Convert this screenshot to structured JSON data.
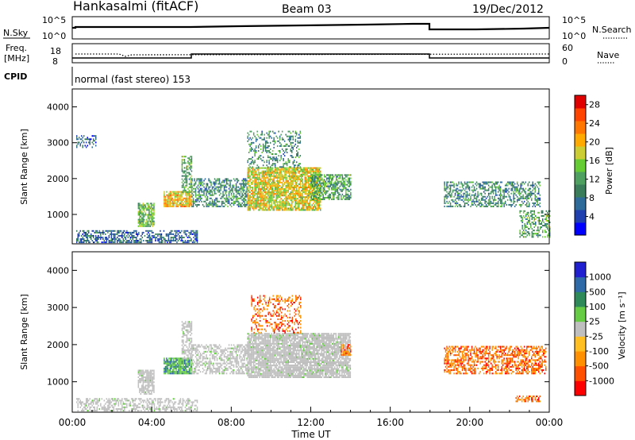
{
  "header": {
    "station": "Hankasalmi (fitACF)",
    "beam": "Beam 03",
    "date": "19/Dec/2012"
  },
  "summary_panels": {
    "nsky_label": "N.Sky",
    "nsky_ticks": [
      "10^5",
      "10^0"
    ],
    "nsearch_label": "N.Search",
    "nsearch_ticks": [
      "10^5",
      "10^0"
    ],
    "freq_label_lines": [
      "Freq.",
      "[MHz]"
    ],
    "freq_ticks": [
      "18",
      "8"
    ],
    "nave_label": "Nave",
    "nave_ticks": [
      "60",
      "0"
    ],
    "cpid_label": "CPID",
    "cpid_text": "normal (fast stereo) 153"
  },
  "colors": {
    "power_scale": [
      "#0000ff",
      "#2040b0",
      "#2e6a9a",
      "#3a7d5a",
      "#4ea060",
      "#66cc33",
      "#cccc33",
      "#ffaa00",
      "#ff7700",
      "#ff4400",
      "#e00000"
    ],
    "velocity_scale": [
      "#ff0000",
      "#ff5000",
      "#ff9000",
      "#ffbf20",
      "#bfbfbf",
      "#66cc44",
      "#2f8a5a",
      "#2f6aa8",
      "#2020d0"
    ]
  },
  "chart_data": [
    {
      "type": "heatmap",
      "name": "power",
      "xlabel": "",
      "ylabel": "Slant Range [km]",
      "xlim": [
        0,
        24
      ],
      "ylim": [
        180,
        4500
      ],
      "yticks": [
        "1000",
        "2000",
        "3000",
        "4000"
      ],
      "colorbar": {
        "label": "Power [dB]",
        "ticks": [
          "4",
          "8",
          "12",
          "16",
          "20",
          "24",
          "28"
        ],
        "range": [
          0,
          30
        ]
      },
      "echo_regions": [
        {
          "t0": 0.2,
          "t1": 6.3,
          "r0": 200,
          "r1": 520,
          "level": 7,
          "density": 0.55
        },
        {
          "t0": 3.3,
          "t1": 4.1,
          "r0": 650,
          "r1": 1300,
          "level": 14,
          "density": 0.75
        },
        {
          "t0": 4.6,
          "t1": 6.0,
          "r0": 1200,
          "r1": 1650,
          "level": 20,
          "density": 0.85
        },
        {
          "t0": 5.5,
          "t1": 6.0,
          "r0": 1600,
          "r1": 2600,
          "level": 12,
          "density": 0.6
        },
        {
          "t0": 6.0,
          "t1": 8.8,
          "r0": 1200,
          "r1": 2000,
          "level": 10,
          "density": 0.55
        },
        {
          "t0": 8.8,
          "t1": 12.5,
          "r0": 1100,
          "r1": 2300,
          "level": 18,
          "density": 0.8
        },
        {
          "t0": 12.0,
          "t1": 14.0,
          "r0": 1400,
          "r1": 2100,
          "level": 12,
          "density": 0.65
        },
        {
          "t0": 8.8,
          "t1": 11.5,
          "r0": 2300,
          "r1": 3300,
          "level": 10,
          "density": 0.3
        },
        {
          "t0": 0.2,
          "t1": 1.2,
          "r0": 2850,
          "r1": 3200,
          "level": 6,
          "density": 0.35
        },
        {
          "t0": 18.7,
          "t1": 23.5,
          "r0": 1200,
          "r1": 1900,
          "level": 10,
          "density": 0.5
        },
        {
          "t0": 22.5,
          "t1": 24.0,
          "r0": 350,
          "r1": 1100,
          "level": 12,
          "density": 0.45
        }
      ]
    },
    {
      "type": "heatmap",
      "name": "velocity",
      "xlabel": "Time UT",
      "ylabel": "Slant Range [km]",
      "xlim": [
        0,
        24
      ],
      "ylim": [
        180,
        4500
      ],
      "xticks": [
        "00:00",
        "04:00",
        "08:00",
        "12:00",
        "16:00",
        "20:00",
        "00:00"
      ],
      "yticks": [
        "1000",
        "2000",
        "3000",
        "4000"
      ],
      "colorbar": {
        "label": "Velocity [m s⁻¹]",
        "ticks": [
          "1000",
          "500",
          "100",
          "25",
          "-25",
          "-100",
          "-500",
          "-1000"
        ]
      },
      "echo_regions": [
        {
          "t0": 0.2,
          "t1": 6.3,
          "r0": 200,
          "r1": 520,
          "class": "ground",
          "density": 0.5
        },
        {
          "t0": 3.3,
          "t1": 4.1,
          "r0": 650,
          "r1": 1300,
          "class": "ground",
          "density": 0.75
        },
        {
          "t0": 4.6,
          "t1": 6.0,
          "r0": 1200,
          "r1": 1650,
          "class": "positive",
          "density": 0.85
        },
        {
          "t0": 5.5,
          "t1": 6.0,
          "r0": 1600,
          "r1": 2600,
          "class": "ground",
          "density": 0.6
        },
        {
          "t0": 6.0,
          "t1": 8.8,
          "r0": 1200,
          "r1": 2000,
          "class": "ground",
          "density": 0.55
        },
        {
          "t0": 8.8,
          "t1": 14.0,
          "r0": 1100,
          "r1": 2300,
          "class": "ground",
          "density": 0.85
        },
        {
          "t0": 9.0,
          "t1": 11.5,
          "r0": 2300,
          "r1": 3300,
          "class": "negative",
          "density": 0.3
        },
        {
          "t0": 13.5,
          "t1": 14.0,
          "r0": 1700,
          "r1": 2000,
          "class": "negative",
          "density": 0.6
        },
        {
          "t0": 18.7,
          "t1": 23.8,
          "r0": 1200,
          "r1": 1950,
          "class": "negative",
          "density": 0.55
        },
        {
          "t0": 22.3,
          "t1": 23.5,
          "r0": 450,
          "r1": 620,
          "class": "negative",
          "density": 0.6
        }
      ]
    }
  ]
}
